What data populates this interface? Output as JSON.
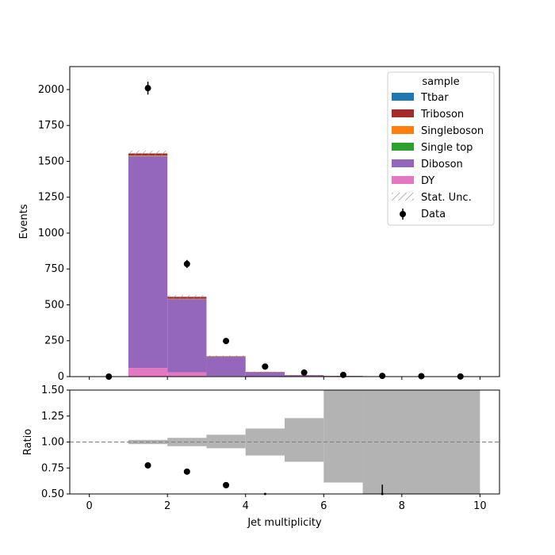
{
  "chart_data": [
    {
      "type": "bar",
      "stacked": true,
      "histogram": true,
      "xlabel": "",
      "ylabel": "Events",
      "xlim": [
        -0.5,
        10.5
      ],
      "ylim": [
        0,
        2160
      ],
      "xticks": [
        0,
        2,
        4,
        6,
        8,
        10
      ],
      "yticks": [
        0,
        250,
        500,
        750,
        1000,
        1250,
        1500,
        1750,
        2000
      ],
      "bin_edges": [
        0,
        1,
        2,
        3,
        4,
        5,
        6,
        7,
        8,
        9,
        10
      ],
      "legend": {
        "title": "sample",
        "placement": "top-right"
      },
      "series": [
        {
          "name": "DY",
          "color": "#e377c2",
          "values": [
            0,
            60,
            30,
            5,
            2,
            1,
            0,
            0,
            0,
            0
          ]
        },
        {
          "name": "Diboson",
          "color": "#9467bd",
          "values": [
            0,
            1475,
            510,
            130,
            27,
            7,
            3,
            1,
            0,
            0
          ]
        },
        {
          "name": "Single top",
          "color": "#2ca02c",
          "values": [
            0,
            2,
            1,
            0.5,
            0,
            0,
            0,
            0,
            0,
            0
          ]
        },
        {
          "name": "Singleboson",
          "color": "#ff7f0e",
          "values": [
            0,
            3,
            2,
            0.5,
            0,
            0,
            0,
            0,
            0,
            0
          ]
        },
        {
          "name": "Triboson",
          "color": "#a52a2a",
          "values": [
            0,
            15,
            13,
            5,
            3,
            2,
            1.5,
            1,
            0,
            0
          ]
        },
        {
          "name": "Ttbar",
          "color": "#1f77b4",
          "values": [
            0,
            0,
            0,
            0,
            0,
            0,
            0,
            0,
            0,
            0
          ]
        }
      ],
      "stat_unc": {
        "name": "Stat. Unc.",
        "values": [
          0,
          20,
          12,
          6,
          3,
          2,
          1,
          1,
          0,
          0
        ]
      },
      "data": {
        "name": "Data",
        "x": [
          0.5,
          1.5,
          2.5,
          3.5,
          4.5,
          5.5,
          6.5,
          7.5,
          8.5,
          9.5
        ],
        "y": [
          0,
          2010,
          785,
          248,
          70,
          28,
          12,
          5,
          3,
          1
        ],
        "err": [
          0,
          45,
          28,
          16,
          8,
          5,
          3,
          2,
          2,
          1
        ]
      }
    },
    {
      "type": "scatter",
      "xlabel": "Jet multiplicity",
      "ylabel": "Ratio",
      "xlim": [
        -0.5,
        10.5
      ],
      "ylim": [
        0.5,
        1.5
      ],
      "xticks": [
        0,
        2,
        4,
        6,
        8,
        10
      ],
      "yticks": [
        0.5,
        0.75,
        1.0,
        1.25,
        1.5
      ],
      "ytick_labels": [
        "0.50",
        "0.75",
        "1.00",
        "1.25",
        "1.50"
      ],
      "reference_line": 1.0,
      "unc_band": [
        {
          "x0": 1,
          "x1": 2,
          "lo": 0.98,
          "hi": 1.02
        },
        {
          "x0": 2,
          "x1": 3,
          "lo": 0.96,
          "hi": 1.04
        },
        {
          "x0": 3,
          "x1": 4,
          "lo": 0.94,
          "hi": 1.07
        },
        {
          "x0": 4,
          "x1": 5,
          "lo": 0.87,
          "hi": 1.13
        },
        {
          "x0": 5,
          "x1": 6,
          "lo": 0.81,
          "hi": 1.23
        },
        {
          "x0": 6,
          "x1": 7,
          "lo": 0.61,
          "hi": 1.5
        },
        {
          "x0": 7,
          "x1": 10,
          "lo": 0.5,
          "hi": 1.5
        }
      ],
      "points": [
        {
          "x": 1.5,
          "y": 0.775,
          "err": 0
        },
        {
          "x": 2.5,
          "y": 0.715,
          "err": 0
        },
        {
          "x": 3.5,
          "y": 0.585,
          "err": 0
        },
        {
          "x": 4.5,
          "y": 0.5,
          "err": 0
        },
        {
          "x": 7.5,
          "y": 0.5,
          "err": 0.09
        }
      ]
    }
  ]
}
